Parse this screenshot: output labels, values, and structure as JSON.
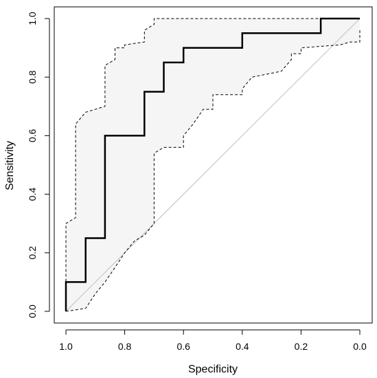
{
  "chart_data": {
    "type": "line",
    "xlabel": "Specificity",
    "ylabel": "Sensitivity",
    "xlim": [
      1.0,
      0.0
    ],
    "ylim": [
      0.0,
      1.0
    ],
    "x_reversed": true,
    "x_ticks": [
      "1.0",
      "0.8",
      "0.6",
      "0.4",
      "0.2",
      "0.0"
    ],
    "y_ticks": [
      "0.0",
      "0.2",
      "0.4",
      "0.6",
      "0.8",
      "1.0"
    ],
    "grid": false,
    "legend": "none",
    "diagonal_reference": true,
    "series": [
      {
        "role": "roc-curve",
        "style": "solid",
        "color": "#000000",
        "x": [
          1.0,
          1.0,
          0.933,
          0.933,
          0.867,
          0.867,
          0.733,
          0.733,
          0.667,
          0.667,
          0.6,
          0.6,
          0.4,
          0.4,
          0.133,
          0.133,
          0.0
        ],
        "y": [
          0.0,
          0.1,
          0.1,
          0.25,
          0.25,
          0.6,
          0.6,
          0.75,
          0.75,
          0.85,
          0.85,
          0.9,
          0.9,
          0.95,
          0.95,
          1.0,
          1.0
        ]
      },
      {
        "role": "ci-upper",
        "style": "dashed",
        "color": "#000000",
        "x": [
          1.0,
          1.0,
          0.967,
          0.967,
          0.933,
          0.933,
          0.867,
          0.867,
          0.833,
          0.833,
          0.8,
          0.8,
          0.733,
          0.733,
          0.7,
          0.7,
          0.0
        ],
        "y": [
          0.02,
          0.3,
          0.32,
          0.64,
          0.68,
          0.68,
          0.7,
          0.84,
          0.86,
          0.9,
          0.9,
          0.91,
          0.92,
          0.96,
          0.98,
          1.0,
          1.0
        ]
      },
      {
        "role": "ci-lower",
        "style": "dashed",
        "color": "#000000",
        "x": [
          1.0,
          0.933,
          0.9,
          0.867,
          0.833,
          0.8,
          0.767,
          0.733,
          0.7,
          0.7,
          0.667,
          0.6,
          0.6,
          0.567,
          0.533,
          0.5,
          0.5,
          0.4,
          0.4,
          0.367,
          0.267,
          0.233,
          0.233,
          0.2,
          0.2,
          0.067,
          0.033,
          0.0,
          0.0
        ],
        "y": [
          0.0,
          0.01,
          0.06,
          0.1,
          0.15,
          0.2,
          0.24,
          0.26,
          0.3,
          0.54,
          0.56,
          0.56,
          0.6,
          0.64,
          0.69,
          0.69,
          0.74,
          0.74,
          0.76,
          0.8,
          0.82,
          0.86,
          0.88,
          0.88,
          0.9,
          0.91,
          0.92,
          0.92,
          0.96
        ]
      }
    ],
    "colors": {
      "ci_fill": "#f5f5f5",
      "diagonal": "#bfbfbf",
      "axes": "#000000"
    }
  }
}
